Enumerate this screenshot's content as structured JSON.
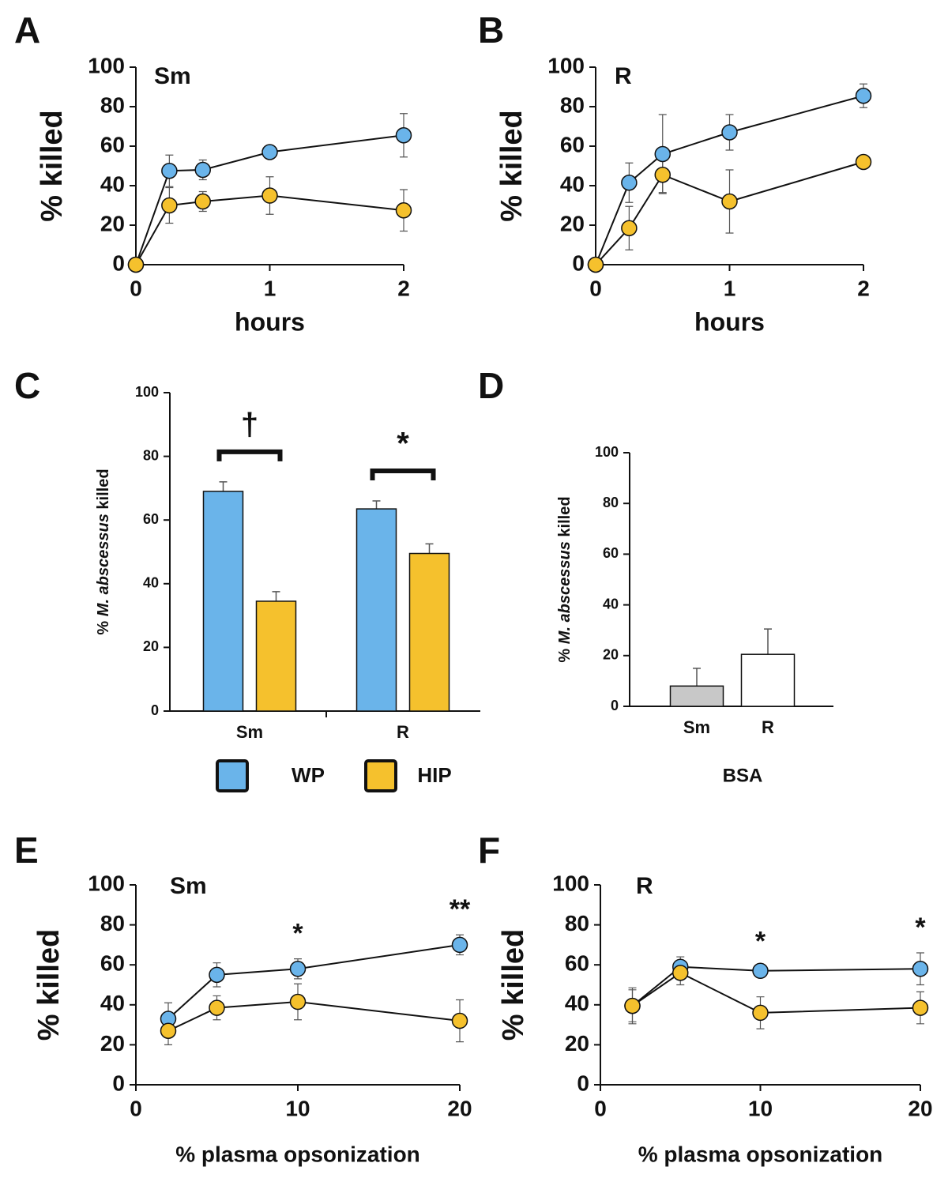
{
  "legend": {
    "items": [
      {
        "name": "WP",
        "color": "#6ab4ea"
      },
      {
        "name": "HIP",
        "color": "#f5c12d"
      }
    ]
  },
  "chart_data": [
    {
      "type": "line",
      "panel": "A",
      "annotation": "Sm",
      "xlabel": "hours",
      "ylabel": "% killed",
      "x": [
        0,
        0.25,
        0.5,
        1,
        2
      ],
      "xlim": [
        0,
        2
      ],
      "xticks": [
        0,
        1,
        2
      ],
      "ylim": [
        0,
        100
      ],
      "yticks": [
        0,
        20,
        40,
        60,
        80,
        100
      ],
      "series": [
        {
          "color": "#6ab4ea",
          "values": [
            0,
            47.5,
            48,
            57,
            65.5
          ],
          "errors": [
            0,
            8,
            5,
            0,
            11
          ]
        },
        {
          "color": "#f5c12d",
          "values": [
            0,
            30,
            32,
            35,
            27.5
          ],
          "errors": [
            0,
            9,
            5,
            9.5,
            10.5
          ]
        }
      ]
    },
    {
      "type": "line",
      "panel": "B",
      "annotation": "R",
      "xlabel": "hours",
      "ylabel": "% killed",
      "x": [
        0,
        0.25,
        0.5,
        1,
        2
      ],
      "xlim": [
        0,
        2
      ],
      "xticks": [
        0,
        1,
        2
      ],
      "ylim": [
        0,
        100
      ],
      "yticks": [
        0,
        20,
        40,
        60,
        80,
        100
      ],
      "series": [
        {
          "color": "#6ab4ea",
          "values": [
            0,
            41.5,
            56,
            67,
            85.5
          ],
          "errors": [
            0,
            10,
            20,
            9,
            6
          ]
        },
        {
          "color": "#f5c12d",
          "values": [
            0,
            18.5,
            45.5,
            32,
            52
          ],
          "errors": [
            0,
            11,
            9,
            16,
            3
          ]
        }
      ]
    },
    {
      "type": "bar",
      "panel": "C",
      "ylabel": [
        "% ",
        "M. abscessus",
        " killed"
      ],
      "categories": [
        "Sm",
        "R"
      ],
      "ylim": [
        0,
        100
      ],
      "yticks": [
        0,
        20,
        40,
        60,
        80,
        100
      ],
      "significance": [
        "†",
        "*"
      ],
      "series": [
        {
          "color": "#6ab4ea",
          "values": [
            69,
            63.5
          ],
          "errors": [
            3,
            2.5
          ]
        },
        {
          "color": "#f5c12d",
          "values": [
            34.5,
            49.5
          ],
          "errors": [
            3,
            3
          ]
        }
      ]
    },
    {
      "type": "bar",
      "panel": "D",
      "ylabel": [
        "% ",
        "M. abscessus",
        " killed"
      ],
      "xlabel": "BSA",
      "categories": [
        "Sm",
        "R"
      ],
      "ylim": [
        0,
        100
      ],
      "yticks": [
        0,
        20,
        40,
        60,
        80,
        100
      ],
      "series": [
        {
          "colors": [
            "#c8c8c8",
            "#ffffff"
          ],
          "values": [
            8,
            20.5
          ],
          "errors": [
            7,
            10
          ]
        }
      ]
    },
    {
      "type": "line",
      "panel": "E",
      "annotation": "Sm",
      "xlabel": "% plasma opsonization",
      "ylabel": "% killed",
      "x": [
        2,
        5,
        10,
        20
      ],
      "xlim": [
        0,
        20
      ],
      "xticks": [
        0,
        10,
        20
      ],
      "ylim": [
        0,
        100
      ],
      "yticks": [
        0,
        20,
        40,
        60,
        80,
        100
      ],
      "significance": [
        null,
        null,
        "*",
        "**"
      ],
      "series": [
        {
          "color": "#6ab4ea",
          "values": [
            33,
            55,
            58,
            70
          ],
          "errors": [
            8,
            6,
            5,
            5
          ]
        },
        {
          "color": "#f5c12d",
          "values": [
            27,
            38.5,
            41.5,
            32
          ],
          "errors": [
            7,
            6,
            9,
            10.5
          ]
        }
      ]
    },
    {
      "type": "line",
      "panel": "F",
      "annotation": "R",
      "xlabel": "% plasma opsonization",
      "ylabel": "% killed",
      "x": [
        2,
        5,
        10,
        20
      ],
      "xlim": [
        0,
        20
      ],
      "xticks": [
        0,
        10,
        20
      ],
      "ylim": [
        0,
        100
      ],
      "yticks": [
        0,
        20,
        40,
        60,
        80,
        100
      ],
      "significance": [
        null,
        null,
        "*",
        "*"
      ],
      "series": [
        {
          "color": "#6ab4ea",
          "values": [
            39.5,
            59,
            57,
            58
          ],
          "errors": [
            9,
            5,
            2,
            8
          ]
        },
        {
          "color": "#f5c12d",
          "values": [
            39.5,
            56,
            36,
            38.5
          ],
          "errors": [
            8,
            6,
            8,
            8
          ]
        }
      ]
    }
  ]
}
